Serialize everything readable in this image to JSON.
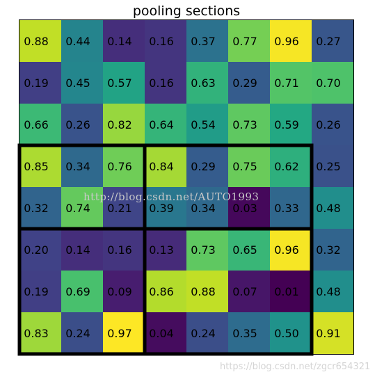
{
  "chart_data": {
    "type": "heatmap",
    "title": "pooling sections",
    "colormap": "viridis",
    "vmin": 0.01,
    "vmax": 0.97,
    "grid": false,
    "rows": [
      [
        0.88,
        0.44,
        0.14,
        0.16,
        0.37,
        0.77,
        0.96,
        0.27
      ],
      [
        0.19,
        0.45,
        0.57,
        0.16,
        0.63,
        0.29,
        0.71,
        0.7
      ],
      [
        0.66,
        0.26,
        0.82,
        0.64,
        0.54,
        0.73,
        0.59,
        0.26
      ],
      [
        0.85,
        0.34,
        0.76,
        0.84,
        0.29,
        0.75,
        0.62,
        0.25
      ],
      [
        0.32,
        0.74,
        0.21,
        0.39,
        0.34,
        0.03,
        0.33,
        0.48
      ],
      [
        0.2,
        0.14,
        0.16,
        0.13,
        0.73,
        0.65,
        0.96,
        0.32
      ],
      [
        0.19,
        0.69,
        0.09,
        0.86,
        0.88,
        0.07,
        0.01,
        0.48
      ],
      [
        0.83,
        0.24,
        0.97,
        0.04,
        0.24,
        0.35,
        0.5,
        0.91
      ]
    ],
    "labels": [
      [
        "0.88",
        "0.44",
        "0.14",
        "0.16",
        "0.37",
        "0.77",
        "0.96",
        "0.27"
      ],
      [
        "0.19",
        "0.45",
        "0.57",
        "0.16",
        "0.63",
        "0.29",
        "0.71",
        "0.70"
      ],
      [
        "0.66",
        "0.26",
        "0.82",
        "0.64",
        "0.54",
        "0.73",
        "0.59",
        "0.26"
      ],
      [
        "0.85",
        "0.34",
        "0.76",
        "0.84",
        "0.29",
        "0.75",
        "0.62",
        "0.25"
      ],
      [
        "0.32",
        "0.74",
        "0.21",
        "0.39",
        "0.34",
        "0.03",
        "0.33",
        "0.48"
      ],
      [
        "0.20",
        "0.14",
        "0.16",
        "0.13",
        "0.73",
        "0.65",
        "0.96",
        "0.32"
      ],
      [
        "0.19",
        "0.69",
        "0.09",
        "0.86",
        "0.88",
        "0.07",
        "0.01",
        "0.48"
      ],
      [
        "0.83",
        "0.24",
        "0.97",
        "0.04",
        "0.24",
        "0.35",
        "0.50",
        "0.91"
      ]
    ],
    "pooling_sections": [
      {
        "row_start": 3,
        "row_end": 5,
        "col_start": 0,
        "col_end": 3
      },
      {
        "row_start": 3,
        "row_end": 5,
        "col_start": 3,
        "col_end": 7
      },
      {
        "row_start": 5,
        "row_end": 8,
        "col_start": 0,
        "col_end": 3
      },
      {
        "row_start": 5,
        "row_end": 8,
        "col_start": 3,
        "col_end": 7
      }
    ],
    "section_border_color": "#000000"
  },
  "watermarks": {
    "center": "http://blog.csdn.net/AUTO1993",
    "bottom_right": "https://blog.csdn.net/zgcr654321"
  }
}
